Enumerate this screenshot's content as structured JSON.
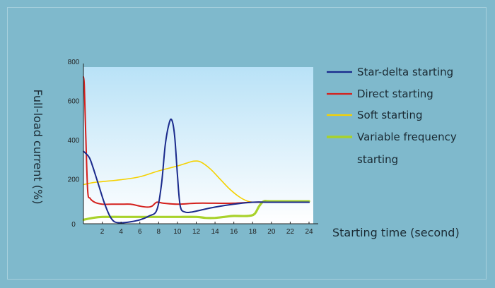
{
  "chart_data": {
    "type": "line",
    "xlabel": "Starting time (second)",
    "ylabel": "Full-load current (%)",
    "xlim": [
      0,
      24
    ],
    "ylim": [
      0,
      800
    ],
    "xticks": [
      2,
      4,
      6,
      8,
      10,
      12,
      14,
      16,
      18,
      20,
      22,
      24
    ],
    "yticks": [
      0,
      200,
      400,
      600,
      800
    ],
    "grid": false,
    "legend_position": "right",
    "series": [
      {
        "name": "Star-delta starting",
        "color": "#1a2a8c",
        "points": [
          [
            0,
            370
          ],
          [
            0.6,
            340
          ],
          [
            1,
            290
          ],
          [
            1.6,
            200
          ],
          [
            2.2,
            110
          ],
          [
            2.8,
            40
          ],
          [
            3.3,
            10
          ],
          [
            4,
            5
          ],
          [
            5,
            10
          ],
          [
            6,
            20
          ],
          [
            7,
            40
          ],
          [
            7.8,
            70
          ],
          [
            8.3,
            200
          ],
          [
            8.7,
            400
          ],
          [
            9.1,
            510
          ],
          [
            9.4,
            530
          ],
          [
            9.7,
            450
          ],
          [
            10,
            250
          ],
          [
            10.3,
            90
          ],
          [
            10.8,
            60
          ],
          [
            11.5,
            60
          ],
          [
            12.5,
            70
          ],
          [
            14,
            85
          ],
          [
            16,
            100
          ],
          [
            18,
            110
          ],
          [
            20,
            110
          ],
          [
            24,
            110
          ]
        ]
      },
      {
        "name": "Direct starting",
        "color": "#d4201c",
        "points": [
          [
            0,
            750
          ],
          [
            0.1,
            700
          ],
          [
            0.25,
            450
          ],
          [
            0.45,
            170
          ],
          [
            0.7,
            130
          ],
          [
            1.2,
            110
          ],
          [
            2,
            100
          ],
          [
            3,
            100
          ],
          [
            4,
            100
          ],
          [
            5,
            100
          ],
          [
            6,
            90
          ],
          [
            6.8,
            85
          ],
          [
            7.3,
            90
          ],
          [
            7.8,
            110
          ],
          [
            8.5,
            105
          ],
          [
            10,
            100
          ],
          [
            12,
            105
          ],
          [
            14,
            105
          ],
          [
            16,
            105
          ],
          [
            18,
            110
          ],
          [
            20,
            110
          ],
          [
            24,
            110
          ]
        ]
      },
      {
        "name": "Soft starting",
        "color": "#f5d100",
        "points": [
          [
            0,
            200
          ],
          [
            1,
            210
          ],
          [
            2,
            215
          ],
          [
            4,
            225
          ],
          [
            6,
            240
          ],
          [
            8,
            270
          ],
          [
            10,
            295
          ],
          [
            11,
            310
          ],
          [
            11.8,
            320
          ],
          [
            12.5,
            315
          ],
          [
            13.5,
            280
          ],
          [
            14.5,
            230
          ],
          [
            15.5,
            180
          ],
          [
            16.5,
            140
          ],
          [
            17.5,
            115
          ],
          [
            18.5,
            110
          ],
          [
            20,
            110
          ],
          [
            24,
            110
          ]
        ]
      },
      {
        "name": "Variable frequency starting",
        "color": "#a8d22a",
        "points": [
          [
            0,
            20
          ],
          [
            1,
            30
          ],
          [
            2,
            35
          ],
          [
            4,
            35
          ],
          [
            6,
            35
          ],
          [
            8,
            35
          ],
          [
            10,
            35
          ],
          [
            12,
            35
          ],
          [
            13,
            30
          ],
          [
            14,
            30
          ],
          [
            15,
            35
          ],
          [
            16,
            40
          ],
          [
            17.5,
            40
          ],
          [
            18.2,
            50
          ],
          [
            18.7,
            90
          ],
          [
            19.2,
            115
          ],
          [
            20,
            115
          ],
          [
            24,
            115
          ]
        ]
      }
    ]
  }
}
